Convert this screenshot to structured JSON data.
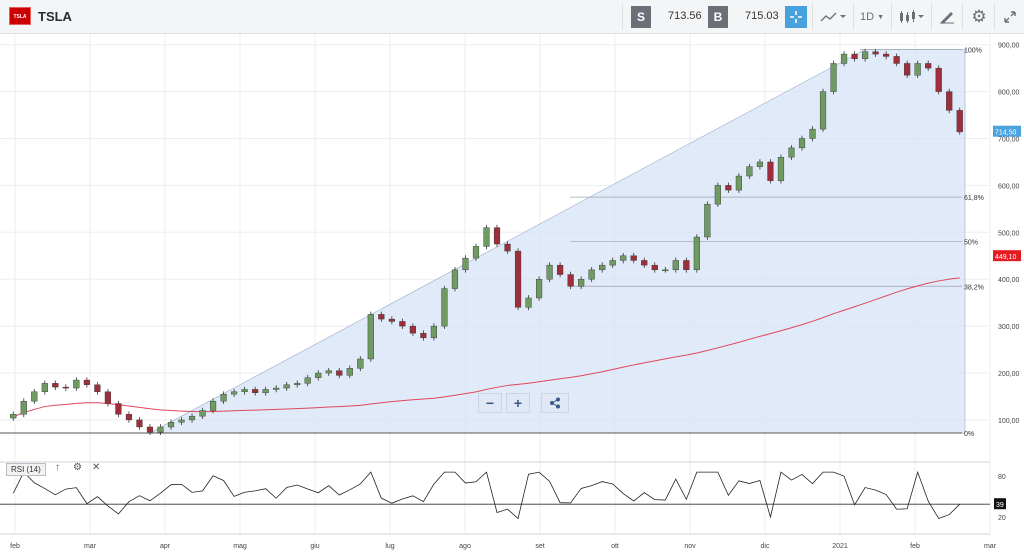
{
  "header": {
    "logo_text": "TSLA",
    "symbol": "TSLA",
    "sell_label": "S",
    "sell_price": "713.56",
    "buy_label": "B",
    "buy_price": "715.03",
    "timeframe": "1D",
    "icons": [
      "crosshair-icon",
      "line-chart-icon",
      "candles-icon",
      "draw-icon",
      "gear-icon",
      "expand-icon"
    ]
  },
  "controls": {
    "zoom_out": "−",
    "zoom_in": "+",
    "share_icon": "share-icon"
  },
  "rsi": {
    "label": "RSI (14)",
    "tick_top": "80",
    "tick_bottom": "20",
    "current": "39"
  },
  "chart_data": {
    "type": "candlestick",
    "y_axis_ticks": [
      "900,00",
      "800,00",
      "700,00",
      "600,00",
      "500,00",
      "400,00",
      "300,00",
      "200,00",
      "100,00"
    ],
    "y_range": [
      70,
      910
    ],
    "x_axis_labels": [
      "feb",
      "mar",
      "apr",
      "mag",
      "giu",
      "lug",
      "ago",
      "set",
      "ott",
      "nov",
      "dic",
      "2021",
      "feb",
      "mar"
    ],
    "price_badge": "714,50",
    "ma_badge": "449,10",
    "fibonacci": [
      {
        "label": "100%",
        "value": 890
      },
      {
        "label": "61,8%",
        "value": 575
      },
      {
        "label": "50%",
        "value": 480
      },
      {
        "label": "38,2%",
        "value": 385
      },
      {
        "label": "0%",
        "value": 72
      }
    ],
    "close_series": [
      112,
      140,
      160,
      178,
      170,
      168,
      185,
      175,
      160,
      135,
      112,
      100,
      85,
      74,
      85,
      95,
      100,
      108,
      120,
      140,
      155,
      160,
      165,
      158,
      165,
      168,
      175,
      178,
      190,
      200,
      205,
      195,
      210,
      230,
      325,
      315,
      310,
      300,
      285,
      275,
      300,
      380,
      420,
      445,
      470,
      510,
      475,
      460,
      340,
      360,
      400,
      430,
      410,
      385,
      400,
      420,
      430,
      440,
      450,
      440,
      430,
      420,
      420,
      440,
      420,
      490,
      560,
      600,
      590,
      620,
      640,
      650,
      610,
      660,
      680,
      700,
      720,
      800,
      860,
      880,
      870,
      885,
      880,
      875,
      860,
      835,
      860,
      850,
      800,
      760,
      714
    ]
  }
}
